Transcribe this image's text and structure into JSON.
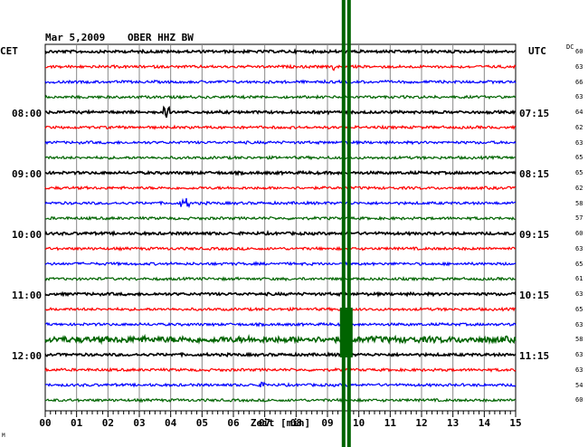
{
  "header": {
    "date": "Mar 5,2009",
    "station": "OBER HHZ BW",
    "left_zone": "CET",
    "right_zone": "UTC",
    "dc_label": "DC"
  },
  "left_times": [
    "08:00",
    "09:00",
    "10:00",
    "11:00",
    "12:00"
  ],
  "right_times": [
    "07:15",
    "08:15",
    "09:15",
    "10:15",
    "11:15"
  ],
  "dc_values": [
    "60",
    "63",
    "66",
    "63",
    "64",
    "62",
    "63",
    "65",
    "65",
    "62",
    "58",
    "57",
    "60",
    "63",
    "65",
    "61",
    "63",
    "65",
    "63",
    "58",
    "63",
    "63",
    "54",
    "60"
  ],
  "x_ticks": [
    "00",
    "01",
    "02",
    "03",
    "04",
    "05",
    "06",
    "07",
    "08",
    "09",
    "10",
    "11",
    "12",
    "13",
    "14",
    "15"
  ],
  "x_label": "Zeit [min]",
  "corner_mark": "M",
  "trace_colors": [
    "#000000",
    "#ff0000",
    "#0000ff",
    "#006400"
  ],
  "event_color": "#006400",
  "chart_data": {
    "type": "line",
    "title": "Mar 5,2009   OBER HHZ BW",
    "xlabel": "Zeit [min]",
    "xlim": [
      0,
      15
    ],
    "rows": 24,
    "row_minutes": 15,
    "first_row_time_CET": "07:15",
    "first_row_time_UTC": "06:30",
    "event_minute": 9.6,
    "event_rows": [
      19
    ]
  }
}
